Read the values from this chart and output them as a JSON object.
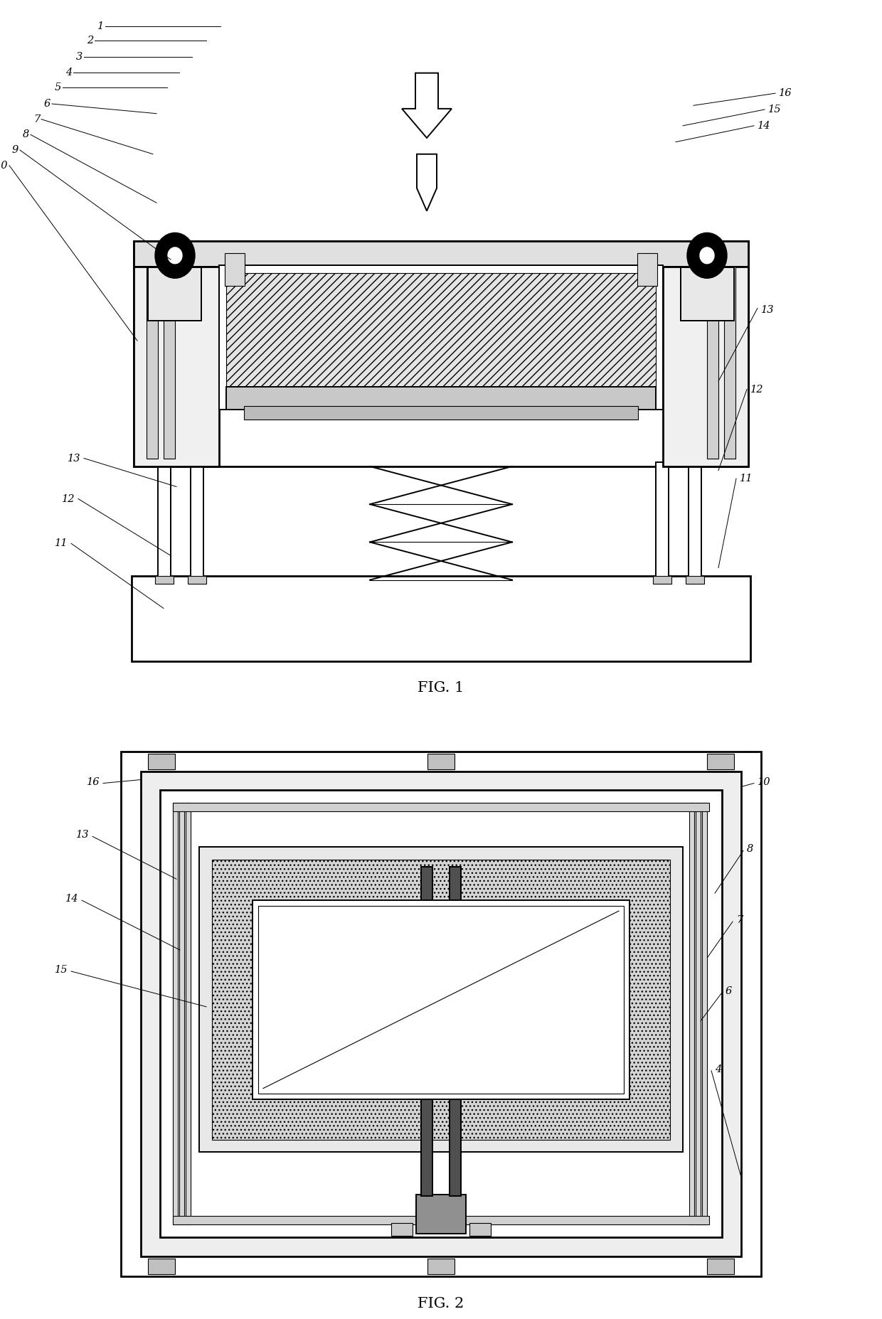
{
  "fig_width": 12.4,
  "fig_height": 18.55,
  "bg_color": "#ffffff",
  "lw_main": 2.0,
  "lw_med": 1.4,
  "lw_thin": 0.8,
  "lw_label": 0.7,
  "label_fontsize": 10.5
}
